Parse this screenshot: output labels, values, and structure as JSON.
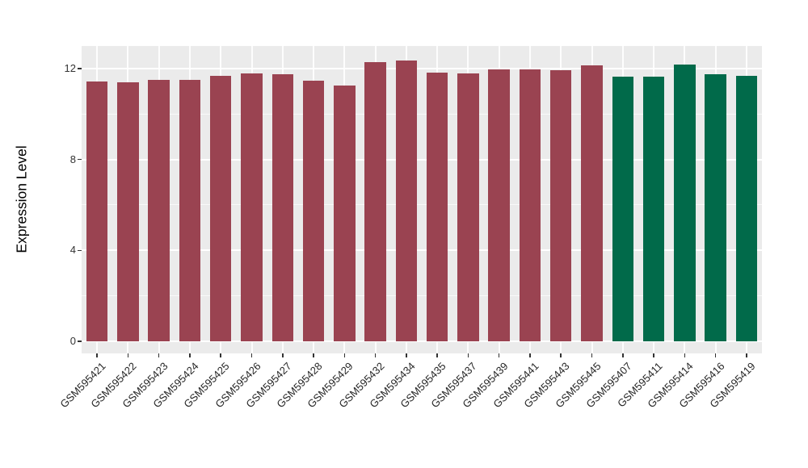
{
  "chart_data": {
    "type": "bar",
    "title": "",
    "xlabel": "",
    "ylabel": "Expression Level",
    "ylim": [
      0,
      13
    ],
    "yticks": [
      0,
      4,
      8,
      12
    ],
    "ytick_labels": [
      "0",
      "4",
      "8",
      "12"
    ],
    "minor_gridlines": [
      2,
      6,
      10
    ],
    "legend_position": "none",
    "grid": "on",
    "panel_background": "#EBEBEB",
    "gridline_color": "#FFFFFF",
    "group_colors": {
      "left_group": "#9A4351",
      "right_group": "#016A4A"
    },
    "categories": [
      "GSM595421",
      "GSM595422",
      "GSM595423",
      "GSM595424",
      "GSM595425",
      "GSM595426",
      "GSM595427",
      "GSM595428",
      "GSM595429",
      "GSM595432",
      "GSM595434",
      "GSM595435",
      "GSM595437",
      "GSM595439",
      "GSM595441",
      "GSM595443",
      "GSM595445",
      "GSM595407",
      "GSM595411",
      "GSM595414",
      "GSM595416",
      "GSM595419"
    ],
    "bars": [
      {
        "label": "GSM595421",
        "value": 11.42,
        "color": "#9A4351"
      },
      {
        "label": "GSM595422",
        "value": 11.41,
        "color": "#9A4351"
      },
      {
        "label": "GSM595423",
        "value": 11.5,
        "color": "#9A4351"
      },
      {
        "label": "GSM595424",
        "value": 11.5,
        "color": "#9A4351"
      },
      {
        "label": "GSM595425",
        "value": 11.69,
        "color": "#9A4351"
      },
      {
        "label": "GSM595426",
        "value": 11.77,
        "color": "#9A4351"
      },
      {
        "label": "GSM595427",
        "value": 11.75,
        "color": "#9A4351"
      },
      {
        "label": "GSM595428",
        "value": 11.45,
        "color": "#9A4351"
      },
      {
        "label": "GSM595429",
        "value": 11.26,
        "color": "#9A4351"
      },
      {
        "label": "GSM595432",
        "value": 12.28,
        "color": "#9A4351"
      },
      {
        "label": "GSM595434",
        "value": 12.37,
        "color": "#9A4351"
      },
      {
        "label": "GSM595435",
        "value": 11.82,
        "color": "#9A4351"
      },
      {
        "label": "GSM595437",
        "value": 11.8,
        "color": "#9A4351"
      },
      {
        "label": "GSM595439",
        "value": 11.97,
        "color": "#9A4351"
      },
      {
        "label": "GSM595441",
        "value": 11.97,
        "color": "#9A4351"
      },
      {
        "label": "GSM595443",
        "value": 11.91,
        "color": "#9A4351"
      },
      {
        "label": "GSM595445",
        "value": 12.15,
        "color": "#9A4351"
      },
      {
        "label": "GSM595407",
        "value": 11.63,
        "color": "#016A4A"
      },
      {
        "label": "GSM595411",
        "value": 11.63,
        "color": "#016A4A"
      },
      {
        "label": "GSM595414",
        "value": 12.19,
        "color": "#016A4A"
      },
      {
        "label": "GSM595416",
        "value": 11.75,
        "color": "#016A4A"
      },
      {
        "label": "GSM595419",
        "value": 11.68,
        "color": "#016A4A"
      }
    ]
  }
}
